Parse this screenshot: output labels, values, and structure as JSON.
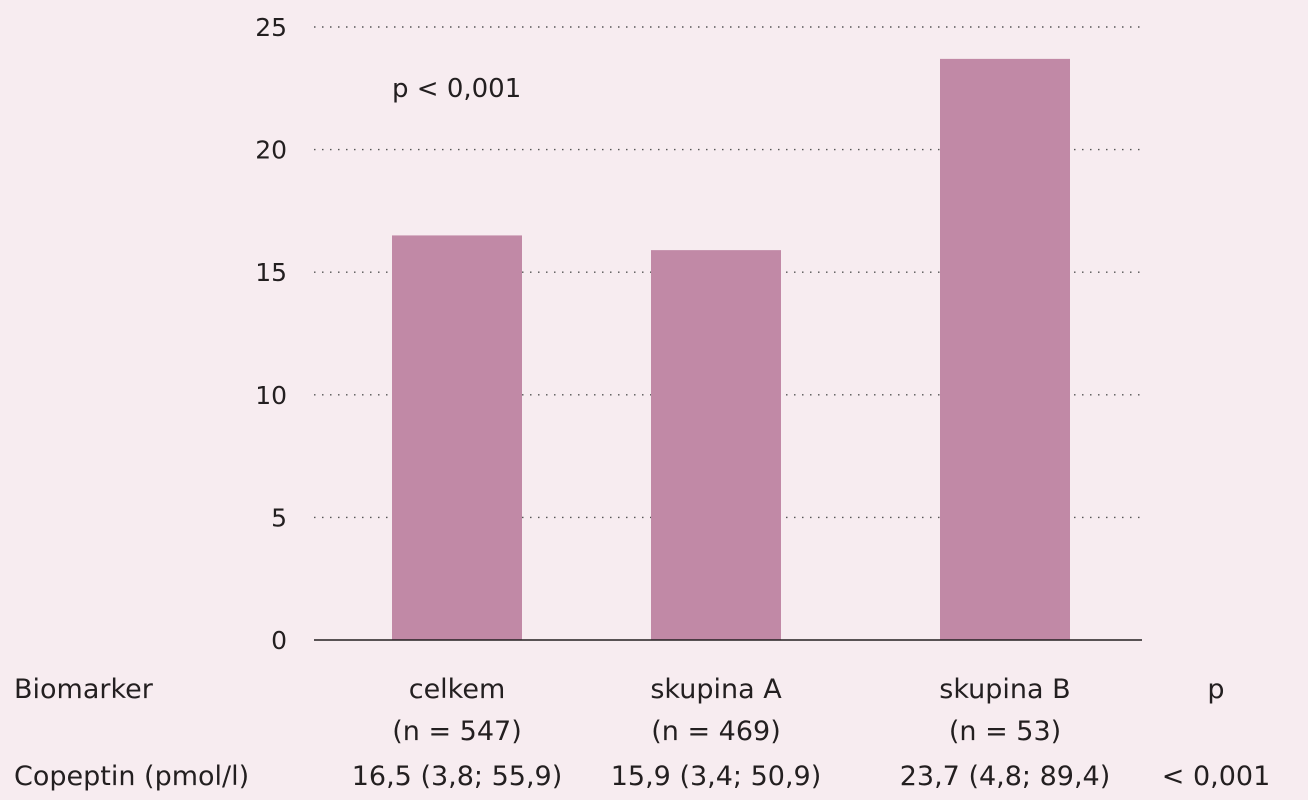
{
  "chart_data": {
    "type": "bar",
    "categories": [
      "celkem",
      "skupina A",
      "skupina B"
    ],
    "values": [
      16.5,
      15.9,
      23.7
    ],
    "title": "",
    "xlabel": "",
    "ylabel": "",
    "ylim": [
      0,
      25
    ],
    "yticks": [
      "0",
      "5",
      "10",
      "15",
      "20",
      "25"
    ],
    "grid": true,
    "bar_color": "#c189a6",
    "annotation": "p  < 0,001"
  },
  "table": {
    "header_label": "Biomarker",
    "p_header": "p",
    "columns": [
      {
        "name": "celkem",
        "n": "(n = 547)",
        "value": "16,5 (3,8; 55,9)"
      },
      {
        "name": "skupina A",
        "n": "(n = 469)",
        "value": "15,9 (3,4; 50,9)"
      },
      {
        "name": "skupina B",
        "n": "(n = 53)",
        "value": "23,7 (4,8; 89,4)"
      }
    ],
    "row_label": "Copeptin (pmol/l)",
    "p_value": "< 0,001"
  }
}
